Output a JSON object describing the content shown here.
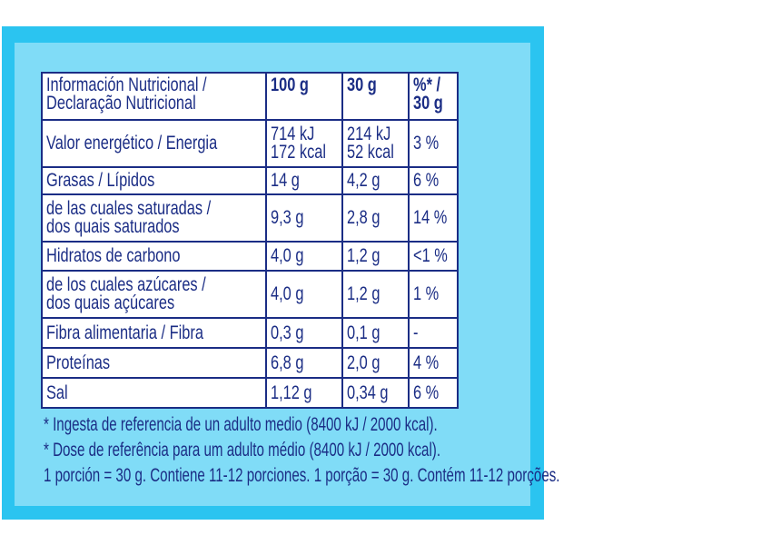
{
  "colors": {
    "outer": "#2bc4f0",
    "inner": "#80dcf7",
    "text": "#1b2d85"
  },
  "table": {
    "header": {
      "label": [
        "Información Nutricional /",
        "Declaração Nutricional"
      ],
      "col1": "100 g",
      "col2": "30 g",
      "col3": [
        "%* /",
        "30 g"
      ]
    },
    "rows": [
      {
        "label": [
          "Valor energético / Energia"
        ],
        "v100": [
          "714 kJ",
          "172 kcal"
        ],
        "v30": [
          "214 kJ",
          "52 kcal"
        ],
        "pct": "3 %"
      },
      {
        "label": [
          "Grasas / Lípidos"
        ],
        "v100": [
          "14 g"
        ],
        "v30": [
          "4,2 g"
        ],
        "pct": "6 %"
      },
      {
        "label": [
          "de las cuales saturadas /",
          "dos quais saturados"
        ],
        "v100": [
          "9,3 g"
        ],
        "v30": [
          "2,8 g"
        ],
        "pct": "14 %"
      },
      {
        "label": [
          "Hidratos de carbono"
        ],
        "v100": [
          "4,0 g"
        ],
        "v30": [
          "1,2 g"
        ],
        "pct": "<1 %"
      },
      {
        "label": [
          "de los cuales azúcares /",
          "dos quais açúcares"
        ],
        "v100": [
          "4,0 g"
        ],
        "v30": [
          "1,2 g"
        ],
        "pct": "1 %"
      },
      {
        "label": [
          "Fibra alimentaria / Fibra"
        ],
        "v100": [
          "0,3 g"
        ],
        "v30": [
          "0,1 g"
        ],
        "pct": "-"
      },
      {
        "label": [
          "Proteínas"
        ],
        "v100": [
          "6,8 g"
        ],
        "v30": [
          "2,0 g"
        ],
        "pct": "4 %"
      },
      {
        "label": [
          "Sal"
        ],
        "v100": [
          "1,12 g"
        ],
        "v30": [
          "0,34 g"
        ],
        "pct": "6 %"
      }
    ]
  },
  "footnotes": [
    "* Ingesta de referencia de un adulto medio (8400 kJ / 2000 kcal).",
    "* Dose de referência para um adulto médio (8400 kJ / 2000 kcal).",
    "1 porción = 30 g. Contiene 11-12 porciones. 1 porção = 30 g. Contém 11-12 porções."
  ]
}
